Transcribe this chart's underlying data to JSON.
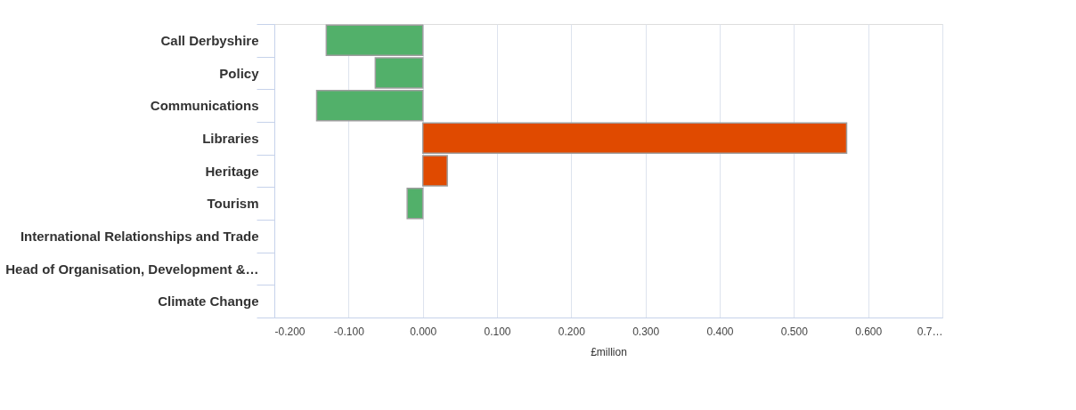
{
  "chart_data": {
    "type": "bar",
    "orientation": "horizontal",
    "xlabel": "£million",
    "categories": [
      "Call Derbyshire",
      "Policy",
      "Communications",
      "Libraries",
      "Heritage",
      "Tourism",
      "International Relationships and Trade",
      "Head of Organisation, Development &…",
      "Climate Change"
    ],
    "values": [
      -0.13,
      -0.064,
      -0.143,
      0.571,
      0.033,
      -0.021,
      null,
      null,
      null
    ],
    "colors": [
      "#52b06a",
      "#52b06a",
      "#52b06a",
      "#e04a00",
      "#e04a00",
      "#52b06a",
      "#52b06a",
      "#52b06a",
      "#52b06a"
    ],
    "xlim": [
      -0.2,
      0.7
    ],
    "xticks": [
      {
        "value": -0.2,
        "label": "-0.200"
      },
      {
        "value": -0.1,
        "label": "-0.100"
      },
      {
        "value": 0,
        "label": "0.000"
      },
      {
        "value": 0.1,
        "label": "0.100"
      },
      {
        "value": 0.2,
        "label": "0.200"
      },
      {
        "value": 0.3,
        "label": "0.300"
      },
      {
        "value": 0.4,
        "label": "0.400"
      },
      {
        "value": 0.5,
        "label": "0.500"
      },
      {
        "value": 0.6,
        "label": "0.600"
      },
      {
        "value": 0.7,
        "label": "0.7…"
      }
    ],
    "grid": "x"
  }
}
